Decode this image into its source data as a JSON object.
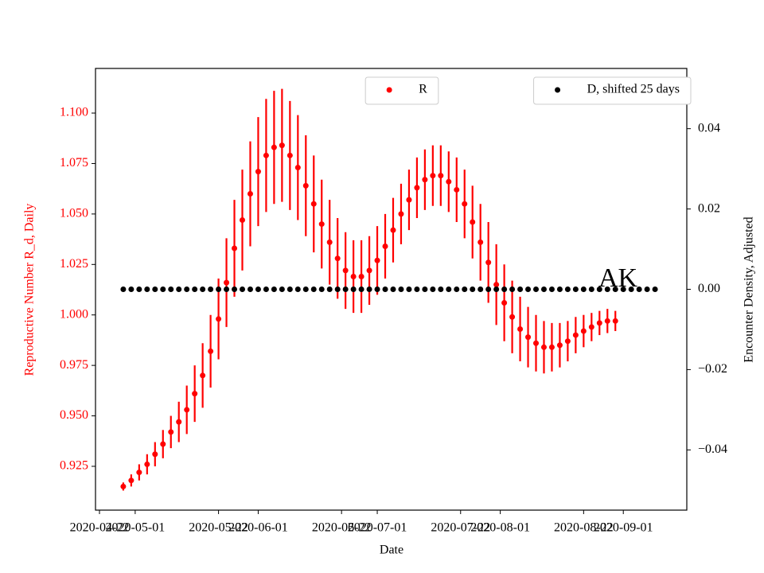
{
  "chart_data": {
    "type": "errorbar-dual",
    "x_label": "Date",
    "y_label": "Reproductive Number R_d, Daily",
    "y2_label": "Encounter Density, Adjusted",
    "annotation": "AK",
    "xlim": [
      "2020-04-21",
      "2020-09-17"
    ],
    "xticks": [
      "2020-04-22",
      "2020-05-01",
      "2020-05-22",
      "2020-06-01",
      "2020-06-22",
      "2020-07-01",
      "2020-07-22",
      "2020-08-01",
      "2020-08-22",
      "2020-09-01"
    ],
    "ylim": [
      0.9033,
      1.1221
    ],
    "yticks": [
      {
        "value": 0.925,
        "label": "0.925"
      },
      {
        "value": 0.95,
        "label": "0.950"
      },
      {
        "value": 0.975,
        "label": "0.975"
      },
      {
        "value": 1,
        "label": "1.000"
      },
      {
        "value": 1.025,
        "label": "1.025"
      },
      {
        "value": 1.05,
        "label": "1.050"
      },
      {
        "value": 1.075,
        "label": "1.075"
      },
      {
        "value": 1.1,
        "label": "1.100"
      }
    ],
    "y2lim": [
      -0.055,
      0.055
    ],
    "y2ticks": [
      {
        "value": -0.04,
        "label": "−0.04"
      },
      {
        "value": -0.02,
        "label": "−0.02"
      },
      {
        "value": 0,
        "label": "0.00"
      },
      {
        "value": 0.02,
        "label": "0.02"
      },
      {
        "value": 0.04,
        "label": "0.04"
      }
    ],
    "series": [
      {
        "name": "R",
        "color": "#ff0000",
        "legend": "upper center",
        "x": [
          "2020-04-28",
          "2020-04-30",
          "2020-05-02",
          "2020-05-04",
          "2020-05-06",
          "2020-05-08",
          "2020-05-10",
          "2020-05-12",
          "2020-05-14",
          "2020-05-16",
          "2020-05-18",
          "2020-05-20",
          "2020-05-22",
          "2020-05-24",
          "2020-05-26",
          "2020-05-28",
          "2020-05-30",
          "2020-06-01",
          "2020-06-03",
          "2020-06-05",
          "2020-06-07",
          "2020-06-09",
          "2020-06-11",
          "2020-06-13",
          "2020-06-15",
          "2020-06-17",
          "2020-06-19",
          "2020-06-21",
          "2020-06-23",
          "2020-06-25",
          "2020-06-27",
          "2020-06-29",
          "2020-07-01",
          "2020-07-03",
          "2020-07-05",
          "2020-07-07",
          "2020-07-09",
          "2020-07-11",
          "2020-07-13",
          "2020-07-15",
          "2020-07-17",
          "2020-07-19",
          "2020-07-21",
          "2020-07-23",
          "2020-07-25",
          "2020-07-27",
          "2020-07-29",
          "2020-07-31",
          "2020-08-02",
          "2020-08-04",
          "2020-08-06",
          "2020-08-08",
          "2020-08-10",
          "2020-08-12",
          "2020-08-14",
          "2020-08-16",
          "2020-08-18",
          "2020-08-20",
          "2020-08-22",
          "2020-08-24",
          "2020-08-26",
          "2020-08-28",
          "2020-08-30"
        ],
        "values": [
          0.915,
          0.918,
          0.922,
          0.926,
          0.931,
          0.936,
          0.942,
          0.947,
          0.953,
          0.961,
          0.97,
          0.982,
          0.998,
          1.016,
          1.033,
          1.047,
          1.06,
          1.071,
          1.079,
          1.083,
          1.084,
          1.079,
          1.073,
          1.064,
          1.055,
          1.045,
          1.036,
          1.028,
          1.022,
          1.019,
          1.019,
          1.022,
          1.027,
          1.034,
          1.042,
          1.05,
          1.057,
          1.063,
          1.067,
          1.069,
          1.069,
          1.066,
          1.062,
          1.055,
          1.046,
          1.036,
          1.026,
          1.015,
          1.006,
          0.999,
          0.993,
          0.989,
          0.986,
          0.984,
          0.984,
          0.985,
          0.987,
          0.99,
          0.992,
          0.994,
          0.996,
          0.997,
          0.997
        ],
        "errors": [
          0.002,
          0.003,
          0.004,
          0.005,
          0.006,
          0.007,
          0.008,
          0.01,
          0.012,
          0.014,
          0.016,
          0.018,
          0.02,
          0.022,
          0.024,
          0.025,
          0.026,
          0.027,
          0.028,
          0.028,
          0.028,
          0.027,
          0.026,
          0.025,
          0.024,
          0.022,
          0.021,
          0.02,
          0.019,
          0.018,
          0.018,
          0.017,
          0.017,
          0.016,
          0.016,
          0.015,
          0.015,
          0.015,
          0.015,
          0.015,
          0.015,
          0.015,
          0.016,
          0.017,
          0.018,
          0.019,
          0.02,
          0.02,
          0.019,
          0.018,
          0.016,
          0.015,
          0.014,
          0.013,
          0.012,
          0.011,
          0.01,
          0.009,
          0.008,
          0.007,
          0.006,
          0.006,
          0.005
        ]
      },
      {
        "name": "D, shifted 25 days",
        "color": "#000000",
        "axis": "y2",
        "legend": "upper right",
        "x": [
          "2020-04-28",
          "2020-04-30",
          "2020-05-02",
          "2020-05-04",
          "2020-05-06",
          "2020-05-08",
          "2020-05-10",
          "2020-05-12",
          "2020-05-14",
          "2020-05-16",
          "2020-05-18",
          "2020-05-20",
          "2020-05-22",
          "2020-05-24",
          "2020-05-26",
          "2020-05-28",
          "2020-05-30",
          "2020-06-01",
          "2020-06-03",
          "2020-06-05",
          "2020-06-07",
          "2020-06-09",
          "2020-06-11",
          "2020-06-13",
          "2020-06-15",
          "2020-06-17",
          "2020-06-19",
          "2020-06-21",
          "2020-06-23",
          "2020-06-25",
          "2020-06-27",
          "2020-06-29",
          "2020-07-01",
          "2020-07-03",
          "2020-07-05",
          "2020-07-07",
          "2020-07-09",
          "2020-07-11",
          "2020-07-13",
          "2020-07-15",
          "2020-07-17",
          "2020-07-19",
          "2020-07-21",
          "2020-07-23",
          "2020-07-25",
          "2020-07-27",
          "2020-07-29",
          "2020-07-31",
          "2020-08-02",
          "2020-08-04",
          "2020-08-06",
          "2020-08-08",
          "2020-08-10",
          "2020-08-12",
          "2020-08-14",
          "2020-08-16",
          "2020-08-18",
          "2020-08-20",
          "2020-08-22",
          "2020-08-24",
          "2020-08-26",
          "2020-08-28",
          "2020-08-30",
          "2020-09-01",
          "2020-09-03",
          "2020-09-05",
          "2020-09-07",
          "2020-09-09"
        ],
        "values": [
          0,
          0,
          0,
          0,
          0,
          0,
          0,
          0,
          0,
          0,
          0,
          0,
          0,
          0,
          0,
          0,
          0,
          0,
          0,
          0,
          0,
          0,
          0,
          0,
          0,
          0,
          0,
          0,
          0,
          0,
          0,
          0,
          0,
          0,
          0,
          0,
          0,
          0,
          0,
          0,
          0,
          0,
          0,
          0,
          0,
          0,
          0,
          0,
          0,
          0,
          0,
          0,
          0,
          0,
          0,
          0,
          0,
          0,
          0,
          0,
          0,
          0,
          0,
          0,
          0,
          0,
          0,
          0
        ]
      }
    ]
  }
}
